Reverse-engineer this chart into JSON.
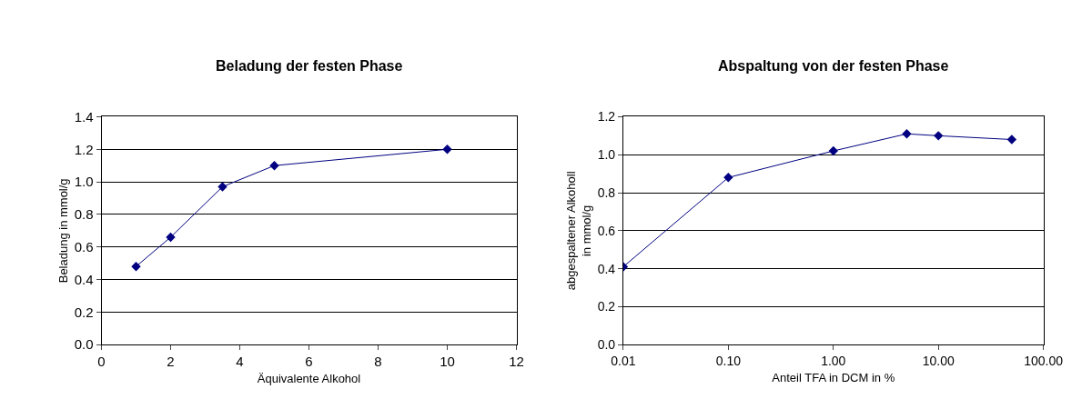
{
  "chart_data": [
    {
      "type": "line",
      "title": "Beladung der festen Phase",
      "xlabel": "Äquivalente Alkohol",
      "ylabel": "Beladung in mmol/g",
      "x": [
        1,
        2,
        3.5,
        5,
        10
      ],
      "series": [
        {
          "color": "#000080",
          "values": [
            0.48,
            0.66,
            0.97,
            1.1,
            1.2
          ]
        }
      ],
      "xlim": [
        0,
        12
      ],
      "xticks": [
        0,
        2,
        4,
        6,
        8,
        10,
        12
      ],
      "ylim": [
        0,
        1.4
      ],
      "yticks": [
        {
          "value": 0,
          "label": "0.0"
        },
        {
          "value": 0.2,
          "label": "0.2"
        },
        {
          "value": 0.4,
          "label": "0.4"
        },
        {
          "value": 0.6,
          "label": "0.6"
        },
        {
          "value": 0.8,
          "label": "0.8"
        },
        {
          "value": 1.0,
          "label": "1.0"
        },
        {
          "value": 1.2,
          "label": "1.2"
        },
        {
          "value": 1.4,
          "label": "1.4"
        }
      ],
      "grid": "y",
      "marker": "diamond",
      "line_style": "solid"
    },
    {
      "type": "line",
      "title": "Abspaltung von der festen Phase",
      "xlabel": "Anteil TFA in DCM in %",
      "ylabel": "abgespaltener Alkoholl\nin mmol/g",
      "x": [
        0.01,
        0.1,
        1,
        5,
        10,
        50
      ],
      "series": [
        {
          "color": "#000080",
          "values": [
            0.41,
            0.88,
            1.02,
            1.11,
            1.1,
            1.08
          ]
        }
      ],
      "log": "x",
      "xlim": [
        0.01,
        100
      ],
      "xticks": [
        {
          "value": 0.01,
          "label": "0.01"
        },
        {
          "value": 0.1,
          "label": "0.10"
        },
        {
          "value": 1,
          "label": "1.00"
        },
        {
          "value": 10,
          "label": "10.00"
        },
        {
          "value": 100,
          "label": "100.00"
        }
      ],
      "ylim": [
        0,
        1.2
      ],
      "yticks": [
        {
          "value": 0,
          "label": "0.0"
        },
        {
          "value": 0.2,
          "label": "0.2"
        },
        {
          "value": 0.4,
          "label": "0.4"
        },
        {
          "value": 0.6,
          "label": "0.6"
        },
        {
          "value": 0.8,
          "label": "0.8"
        },
        {
          "value": 1.0,
          "label": "1.0"
        },
        {
          "value": 1.2,
          "label": "1.2"
        }
      ],
      "grid": "y",
      "marker": "diamond",
      "line_style": "solid"
    }
  ]
}
